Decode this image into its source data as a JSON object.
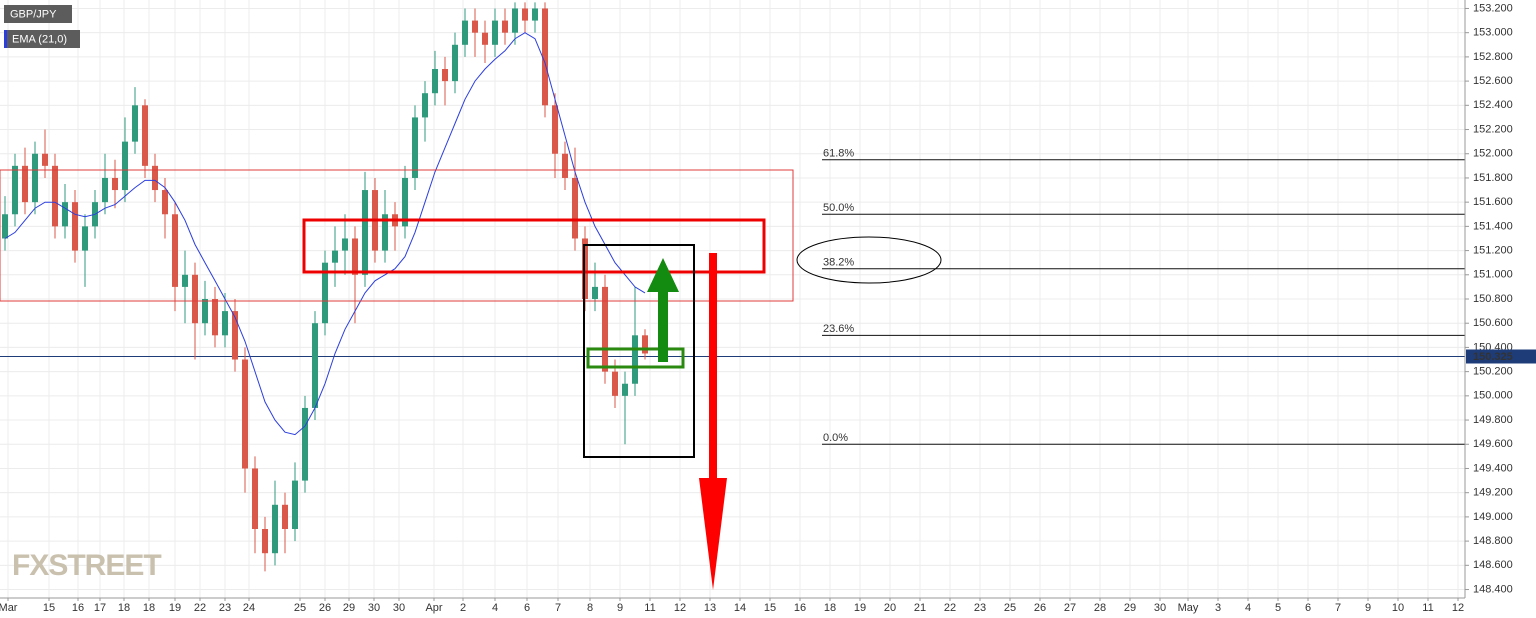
{
  "chart_data": {
    "type": "candlestick",
    "x": [
      0,
      1,
      2,
      3,
      4,
      5,
      6,
      7,
      8,
      9,
      10,
      11,
      12,
      13,
      14,
      15,
      16,
      17,
      18,
      19,
      20,
      21,
      22,
      23,
      24,
      25,
      26,
      27,
      28,
      29,
      30,
      31,
      32,
      33,
      34,
      35,
      36,
      37,
      38,
      39,
      40,
      41,
      42,
      43,
      44,
      45,
      46,
      47,
      48,
      49,
      50,
      51,
      52,
      53,
      54,
      55,
      56,
      57,
      58,
      59,
      60,
      61,
      62,
      63,
      64
    ],
    "series": [
      {
        "name": "GBP/JPY",
        "up_color": "#2f9a7c",
        "down_color": "#d9584a",
        "open": [
          151.3,
          151.5,
          151.9,
          151.6,
          152.0,
          151.9,
          151.4,
          151.6,
          151.2,
          151.4,
          151.6,
          151.8,
          151.7,
          152.1,
          152.4,
          151.9,
          151.7,
          151.5,
          150.9,
          151.0,
          150.6,
          150.8,
          150.5,
          150.7,
          150.3,
          149.4,
          148.9,
          148.7,
          149.1,
          148.9,
          149.3,
          149.9,
          150.6,
          151.1,
          151.2,
          151.3,
          151.0,
          151.7,
          151.2,
          151.5,
          151.4,
          151.8,
          152.3,
          152.5,
          152.7,
          152.6,
          152.9,
          153.1,
          153.0,
          152.9,
          153.1,
          153.0,
          153.2,
          153.1,
          153.2,
          152.4,
          152.0,
          151.8,
          151.3,
          150.8,
          150.9,
          150.2,
          150.0,
          150.1,
          150.5
        ],
        "high": [
          151.65,
          152.0,
          152.05,
          152.1,
          152.2,
          152.0,
          151.75,
          151.7,
          151.5,
          151.7,
          152.0,
          151.95,
          152.3,
          152.55,
          152.45,
          152.0,
          151.8,
          151.6,
          151.2,
          151.1,
          150.95,
          150.9,
          150.85,
          150.8,
          150.4,
          149.5,
          149.0,
          149.3,
          149.2,
          149.45,
          150.0,
          150.7,
          151.2,
          151.4,
          151.5,
          151.4,
          151.85,
          151.8,
          151.7,
          151.6,
          151.9,
          152.4,
          152.6,
          152.85,
          152.8,
          153.0,
          153.2,
          153.2,
          153.1,
          153.2,
          153.2,
          153.25,
          153.25,
          153.25,
          153.25,
          152.5,
          152.1,
          152.05,
          151.4,
          151.1,
          151.0,
          150.3,
          150.2,
          150.9,
          150.55
        ],
        "low": [
          151.2,
          151.4,
          151.5,
          151.5,
          151.8,
          151.3,
          151.3,
          151.1,
          150.9,
          151.3,
          151.5,
          151.55,
          151.6,
          152.0,
          151.8,
          151.6,
          151.3,
          150.7,
          150.6,
          150.3,
          150.5,
          150.4,
          150.4,
          150.2,
          149.2,
          148.7,
          148.55,
          148.6,
          148.7,
          148.8,
          149.2,
          149.8,
          150.5,
          150.9,
          151.0,
          150.6,
          150.9,
          151.1,
          151.1,
          151.2,
          151.3,
          151.7,
          152.1,
          152.4,
          152.4,
          152.5,
          152.8,
          152.8,
          152.75,
          152.8,
          152.9,
          152.9,
          153.0,
          153.0,
          152.3,
          151.8,
          151.7,
          151.2,
          150.7,
          150.7,
          150.1,
          149.9,
          149.6,
          150.0,
          150.3
        ],
        "close": [
          151.5,
          151.9,
          151.6,
          152.0,
          151.9,
          151.4,
          151.6,
          151.2,
          151.4,
          151.6,
          151.8,
          151.7,
          152.1,
          152.4,
          151.9,
          151.7,
          151.5,
          150.9,
          151.0,
          150.6,
          150.8,
          150.5,
          150.7,
          150.3,
          149.4,
          148.9,
          148.7,
          149.1,
          148.9,
          149.3,
          149.9,
          150.6,
          151.1,
          151.2,
          151.3,
          151.0,
          151.7,
          151.2,
          151.5,
          151.4,
          151.8,
          152.3,
          152.5,
          152.7,
          152.6,
          152.9,
          153.1,
          153.0,
          152.9,
          153.1,
          153.0,
          153.2,
          153.1,
          153.2,
          152.4,
          152.0,
          151.8,
          151.3,
          150.8,
          150.9,
          150.2,
          150.0,
          150.1,
          150.5,
          150.35
        ]
      },
      {
        "name": "EMA (21,0)",
        "color": "#2b3ee0",
        "values": [
          151.3,
          151.35,
          151.45,
          151.55,
          151.6,
          151.6,
          151.55,
          151.5,
          151.48,
          151.5,
          151.55,
          151.58,
          151.65,
          151.72,
          151.78,
          151.78,
          151.72,
          151.6,
          151.45,
          151.25,
          151.1,
          150.95,
          150.8,
          150.65,
          150.45,
          150.2,
          149.95,
          149.8,
          149.7,
          149.68,
          149.75,
          149.9,
          150.1,
          150.35,
          150.55,
          150.7,
          150.85,
          150.95,
          151.0,
          151.05,
          151.15,
          151.35,
          151.6,
          151.85,
          152.05,
          152.25,
          152.45,
          152.6,
          152.7,
          152.78,
          152.85,
          152.95,
          153.0,
          152.95,
          152.75,
          152.45,
          152.15,
          151.85,
          151.6,
          151.4,
          151.25,
          151.1,
          151.0,
          150.9,
          150.85
        ]
      }
    ],
    "xlim": [
      -0.5,
      146
    ],
    "ylim": [
      148.33,
      153.27
    ],
    "xticks": [
      {
        "value": 0.3,
        "label": "Mar"
      },
      {
        "value": 4.4,
        "label": "15"
      },
      {
        "value": 7.3,
        "label": "16"
      },
      {
        "value": 9.5,
        "label": "17"
      },
      {
        "value": 11.9,
        "label": "18"
      },
      {
        "value": 14.4,
        "label": "18"
      },
      {
        "value": 17,
        "label": "19"
      },
      {
        "value": 19.5,
        "label": "22"
      },
      {
        "value": 22,
        "label": "23"
      },
      {
        "value": 24.4,
        "label": "24"
      },
      {
        "value": 29.5,
        "label": "25"
      },
      {
        "value": 32,
        "label": "26"
      },
      {
        "value": 34.4,
        "label": "29"
      },
      {
        "value": 36.9,
        "label": "30"
      },
      {
        "value": 39.4,
        "label": "30"
      },
      {
        "value": 42.9,
        "label": "Apr"
      },
      {
        "value": 45.8,
        "label": "2"
      },
      {
        "value": 49,
        "label": "4"
      },
      {
        "value": 52.2,
        "label": "6"
      },
      {
        "value": 55.3,
        "label": "7"
      },
      {
        "value": 58.5,
        "label": "8"
      },
      {
        "value": 61.5,
        "label": "9"
      },
      {
        "value": 64.5,
        "label": "11"
      },
      {
        "value": 67.5,
        "label": "12"
      },
      {
        "value": 70.5,
        "label": "13"
      },
      {
        "value": 73.5,
        "label": "14"
      },
      {
        "value": 76.5,
        "label": "15"
      },
      {
        "value": 79.5,
        "label": "16"
      },
      {
        "value": 82.5,
        "label": "18"
      },
      {
        "value": 85.5,
        "label": "19"
      },
      {
        "value": 88.5,
        "label": "20"
      },
      {
        "value": 91.5,
        "label": "21"
      },
      {
        "value": 94.5,
        "label": "22"
      },
      {
        "value": 97.5,
        "label": "23"
      },
      {
        "value": 100.5,
        "label": "25"
      },
      {
        "value": 103.5,
        "label": "26"
      },
      {
        "value": 106.5,
        "label": "27"
      },
      {
        "value": 109.5,
        "label": "28"
      },
      {
        "value": 112.5,
        "label": "29"
      },
      {
        "value": 115.5,
        "label": "30"
      },
      {
        "value": 118.3,
        "label": "May"
      },
      {
        "value": 121.3,
        "label": "3"
      },
      {
        "value": 124.3,
        "label": "4"
      },
      {
        "value": 127.3,
        "label": "5"
      },
      {
        "value": 130.3,
        "label": "6"
      },
      {
        "value": 133.3,
        "label": "7"
      },
      {
        "value": 136.3,
        "label": "9"
      },
      {
        "value": 139.3,
        "label": "10"
      },
      {
        "value": 142.3,
        "label": "11"
      },
      {
        "value": 145.3,
        "label": "12"
      }
    ],
    "yticks": [
      {
        "value": 148.4,
        "label": "148.400"
      },
      {
        "value": 148.6,
        "label": "148.600"
      },
      {
        "value": 148.8,
        "label": "148.800"
      },
      {
        "value": 149.0,
        "label": "149.000"
      },
      {
        "value": 149.2,
        "label": "149.200"
      },
      {
        "value": 149.4,
        "label": "149.400"
      },
      {
        "value": 149.6,
        "label": "149.600"
      },
      {
        "value": 149.8,
        "label": "149.800"
      },
      {
        "value": 150.0,
        "label": "150.000"
      },
      {
        "value": 150.2,
        "label": "150.200"
      },
      {
        "value": 150.4,
        "label": "150.400"
      },
      {
        "value": 150.6,
        "label": "150.600"
      },
      {
        "value": 150.8,
        "label": "150.800"
      },
      {
        "value": 151.0,
        "label": "151.000"
      },
      {
        "value": 151.2,
        "label": "151.200"
      },
      {
        "value": 151.4,
        "label": "151.400"
      },
      {
        "value": 151.6,
        "label": "151.600"
      },
      {
        "value": 151.8,
        "label": "151.800"
      },
      {
        "value": 152.0,
        "label": "152.000"
      },
      {
        "value": 152.2,
        "label": "152.200"
      },
      {
        "value": 152.4,
        "label": "152.400"
      },
      {
        "value": 152.6,
        "label": "152.600"
      },
      {
        "value": 152.8,
        "label": "152.800"
      },
      {
        "value": 153.0,
        "label": "153.000"
      },
      {
        "value": 153.2,
        "label": "153.200"
      }
    ],
    "grid": true,
    "last_price": 150.325,
    "fib_levels": [
      {
        "text": "61.8%",
        "price": 151.95
      },
      {
        "text": "50.0%",
        "price": 151.5
      },
      {
        "text": "38.2%",
        "price": 151.05
      },
      {
        "text": "23.6%",
        "price": 150.5
      },
      {
        "text": "0.0%",
        "price": 149.6
      }
    ],
    "watermark": "FXSTREET"
  }
}
